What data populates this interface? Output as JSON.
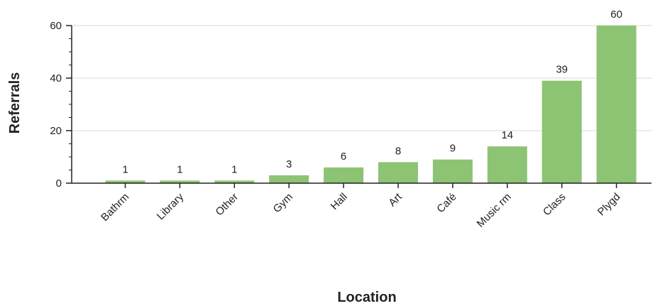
{
  "chart_data": {
    "type": "bar",
    "xlabel": "Location",
    "ylabel": "Referrals",
    "categories": [
      "Bathrm",
      "Library",
      "Other",
      "Gym",
      "Hall",
      "Art",
      "Café",
      "Music rm",
      "Class",
      "Plygd"
    ],
    "values": [
      1,
      1,
      1,
      3,
      6,
      8,
      9,
      14,
      39,
      60
    ],
    "ylim": [
      0,
      60
    ],
    "yticks": [
      0,
      20,
      40,
      60
    ],
    "grid": true,
    "legend": "none",
    "bar_color": "#8cc473",
    "grid_color": "#d9d9d9",
    "axis_color": "#222222"
  }
}
